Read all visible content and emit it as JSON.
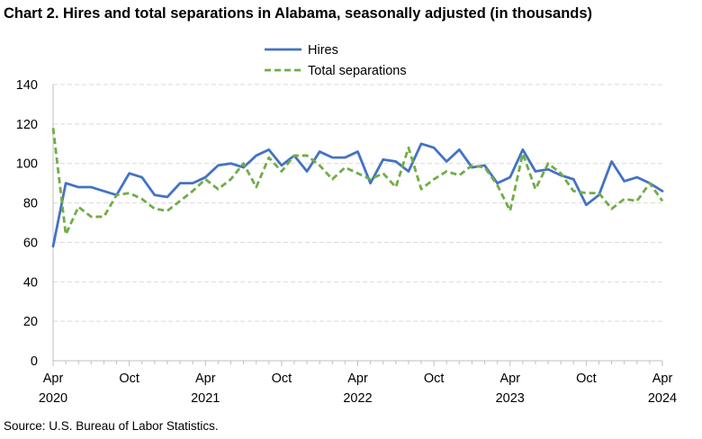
{
  "title": "Chart 2. Hires and total separations in Alabama, seasonally adjusted (in thousands)",
  "source": "Source: U.S. Bureau of Labor Statistics.",
  "chart_data": {
    "type": "line",
    "title": "Chart 2. Hires and total separations in Alabama, seasonally adjusted (in thousands)",
    "ylim": [
      0,
      140
    ],
    "yticks": [
      0,
      20,
      40,
      60,
      80,
      100,
      120,
      140
    ],
    "x_start": "2020-04",
    "x_end": "2024-04",
    "x_tick_labels": [
      {
        "month": "Apr",
        "year": "2020"
      },
      {
        "month": "Oct",
        "year": ""
      },
      {
        "month": "Apr",
        "year": "2021"
      },
      {
        "month": "Oct",
        "year": ""
      },
      {
        "month": "Apr",
        "year": "2022"
      },
      {
        "month": "Oct",
        "year": ""
      },
      {
        "month": "Apr",
        "year": "2023"
      },
      {
        "month": "Oct",
        "year": ""
      },
      {
        "month": "Apr",
        "year": "2024"
      }
    ],
    "grid": "horizontal",
    "legend_position": "top-center",
    "series": [
      {
        "name": "Hires",
        "color": "#4472C4",
        "style": "solid",
        "values": [
          58,
          90,
          88,
          88,
          86,
          84,
          95,
          93,
          84,
          83,
          90,
          90,
          93,
          99,
          100,
          98,
          104,
          107,
          99,
          104,
          96,
          106,
          103,
          103,
          106,
          90,
          102,
          101,
          96,
          110,
          108,
          101,
          107,
          98,
          99,
          90,
          93,
          107,
          96,
          97,
          94,
          92,
          79,
          84,
          101,
          91,
          93,
          90,
          86
        ]
      },
      {
        "name": "Total separations",
        "color": "#70AD47",
        "style": "dashed",
        "values": [
          118,
          64,
          78,
          73,
          73,
          84,
          85,
          82,
          77,
          76,
          81,
          86,
          92,
          87,
          92,
          100,
          88,
          103,
          96,
          104,
          104,
          99,
          92,
          98,
          95,
          92,
          95,
          88,
          108,
          87,
          92,
          96,
          94,
          99,
          98,
          89,
          76,
          105,
          87,
          100,
          95,
          86,
          85,
          85,
          77,
          82,
          81,
          90,
          81
        ]
      }
    ]
  }
}
